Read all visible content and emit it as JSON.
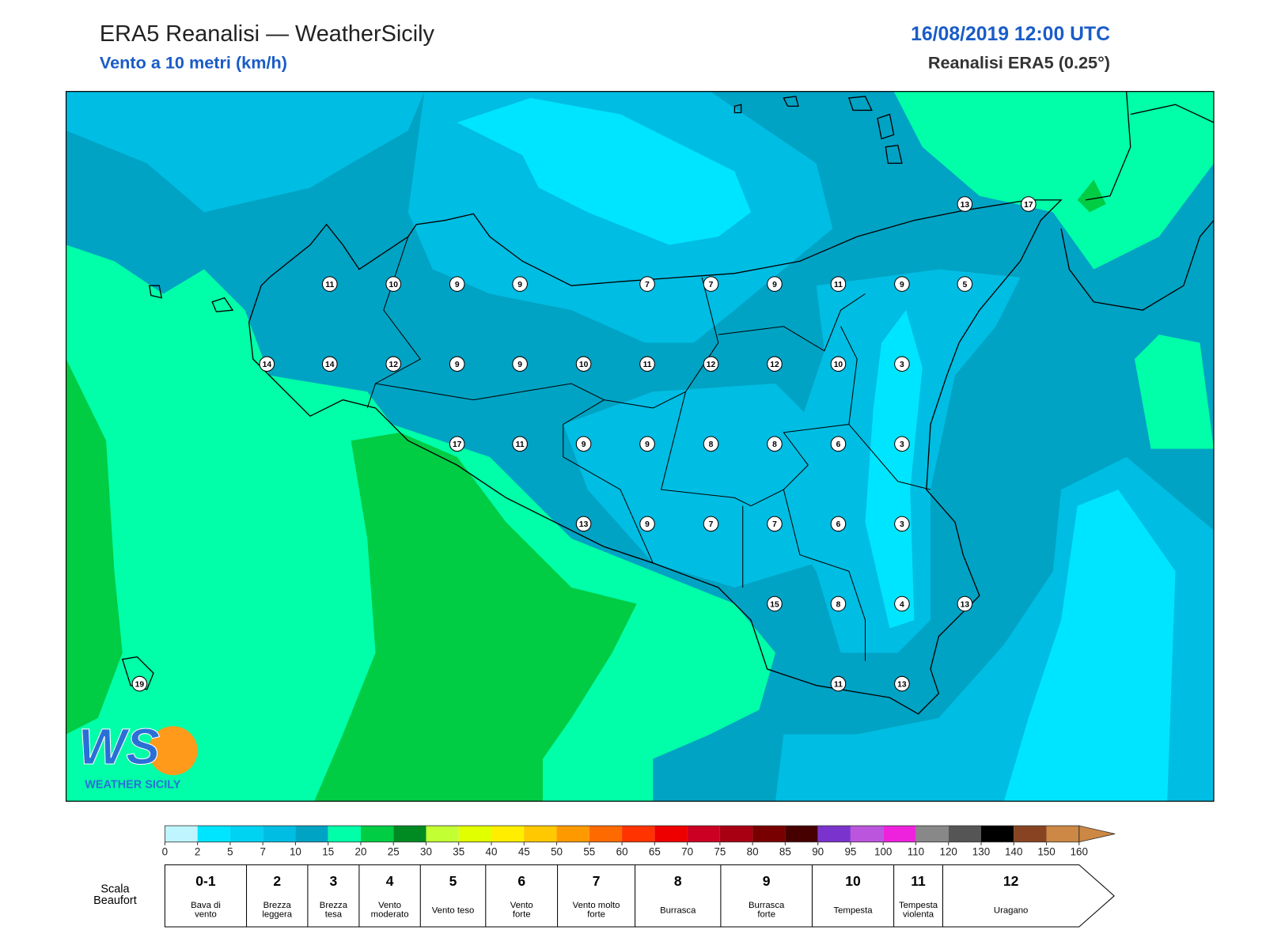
{
  "header": {
    "title": "ERA5 Reanalisi — WeatherSicily",
    "subtitle": "Vento a 10 metri (km/h)",
    "date": "16/08/2019 12:00 UTC",
    "source": "Reanalisi ERA5 (0.25°)"
  },
  "map": {
    "stations": [
      13,
      17,
      11,
      10,
      9,
      9,
      7,
      7,
      9,
      11,
      9,
      5,
      14,
      14,
      12,
      9,
      9,
      10,
      11,
      12,
      12,
      10,
      3,
      17,
      11,
      9,
      9,
      8,
      8,
      6,
      3,
      13,
      9,
      7,
      7,
      6,
      3,
      15,
      8,
      4,
      13,
      11,
      13,
      19
    ]
  },
  "logo": {
    "mark": "WS",
    "name": "WEATHER SICILY"
  },
  "colorbar": {
    "ticks": [
      0,
      2,
      5,
      7,
      10,
      15,
      20,
      25,
      30,
      35,
      40,
      45,
      50,
      55,
      60,
      65,
      70,
      75,
      80,
      85,
      90,
      95,
      100,
      110,
      120,
      130,
      140,
      150,
      160
    ],
    "colors": [
      "#bff5ff",
      "#00e5ff",
      "#00d2f2",
      "#00bde3",
      "#00a3c4",
      "#00ffa8",
      "#00cc44",
      "#008a22",
      "#c2ff33",
      "#e2ff00",
      "#ffee00",
      "#ffc800",
      "#ff9900",
      "#ff6a00",
      "#ff3300",
      "#ee0000",
      "#cc0022",
      "#a80012",
      "#780000",
      "#460000",
      "#7a33cc",
      "#bb55dd",
      "#ee22dd",
      "#888888",
      "#555555",
      "#000000",
      "#884422",
      "#cc8844"
    ],
    "extend_color": "#cc8844"
  },
  "beaufort": {
    "label": [
      "Scala",
      "Beaufort"
    ],
    "levels": [
      {
        "force": "0-1",
        "desc": [
          "Bava di",
          "vento"
        ]
      },
      {
        "force": "2",
        "desc": [
          "Brezza",
          "leggera"
        ]
      },
      {
        "force": "3",
        "desc": [
          "Brezza",
          "tesa"
        ]
      },
      {
        "force": "4",
        "desc": [
          "Vento",
          "moderato"
        ]
      },
      {
        "force": "5",
        "desc": [
          "Vento teso"
        ]
      },
      {
        "force": "6",
        "desc": [
          "Vento",
          "forte"
        ]
      },
      {
        "force": "7",
        "desc": [
          "Vento molto",
          "forte"
        ]
      },
      {
        "force": "8",
        "desc": [
          "Burrasca"
        ]
      },
      {
        "force": "9",
        "desc": [
          "Burrasca",
          "forte"
        ]
      },
      {
        "force": "10",
        "desc": [
          "Tempesta"
        ]
      },
      {
        "force": "11",
        "desc": [
          "Tempesta",
          "violenta"
        ]
      },
      {
        "force": "12",
        "desc": [
          "Uragano"
        ]
      }
    ]
  }
}
